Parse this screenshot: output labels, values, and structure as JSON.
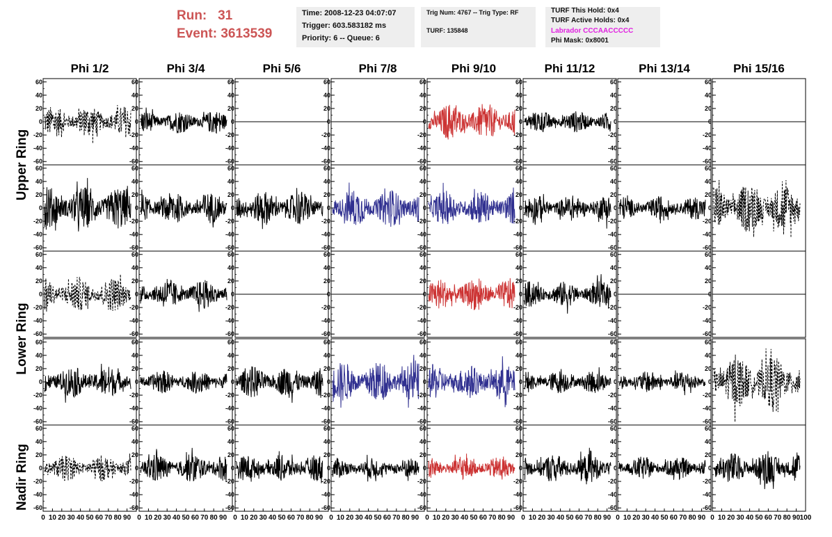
{
  "header": {
    "run_label": "Run:",
    "run_value": "31",
    "event_label": "Event:",
    "event_value": "3613539",
    "time": "Time: 2008-12-23 04:07:07",
    "trigger": "Trigger: 603.583182 ms",
    "priority": "Priority: 6 -- Queue: 6",
    "trig_num": "Trig Num: 4767 -- Trig Type: RF",
    "turf": "TURF: 135848",
    "turf_this_hold": "TURF This Hold: 0x4",
    "turf_active_holds": "TURF Active Holds: 0x4",
    "labrador": "Labrador CCCAACCCCC",
    "phi_mask": "Phi Mask: 0x8001",
    "run_color": "#cc5555",
    "labrador_color": "#e020e0"
  },
  "chart_data": {
    "type": "line",
    "columns": [
      "Phi 1/2",
      "Phi 3/4",
      "Phi 5/6",
      "Phi 7/8",
      "Phi 9/10",
      "Phi 11/12",
      "Phi 13/14",
      "Phi 15/16"
    ],
    "ring_labels": [
      "Upper Ring",
      "Lower Ring",
      "Nadir Ring"
    ],
    "ylim": [
      -65,
      65
    ],
    "xlim": [
      0,
      100
    ],
    "yticks": [
      -60,
      -40,
      -20,
      0,
      20,
      40,
      60
    ],
    "xticks": [
      0,
      10,
      20,
      30,
      40,
      50,
      60,
      70,
      80,
      90,
      100
    ],
    "style_colors": {
      "solid": "#000000",
      "dashed": "#000000",
      "red": "#cc3333",
      "blue": "#303090",
      "flat": "#000000"
    },
    "rows": [
      {
        "panels": [
          {
            "style": "dashed",
            "amplitude": 22
          },
          {
            "style": "solid",
            "amplitude": 16
          },
          {
            "style": "flat",
            "amplitude": 0
          },
          {
            "style": "flat",
            "amplitude": 0
          },
          {
            "style": "red",
            "amplitude": 26
          },
          {
            "style": "solid",
            "amplitude": 15
          },
          {
            "style": "flat",
            "amplitude": 0
          },
          {
            "style": "flat",
            "amplitude": 0
          }
        ]
      },
      {
        "panels": [
          {
            "style": "solid",
            "amplitude": 30
          },
          {
            "style": "solid",
            "amplitude": 22
          },
          {
            "style": "solid",
            "amplitude": 24
          },
          {
            "style": "blue",
            "amplitude": 26
          },
          {
            "style": "blue",
            "amplitude": 24
          },
          {
            "style": "solid",
            "amplitude": 18
          },
          {
            "style": "solid",
            "amplitude": 16
          },
          {
            "style": "dashed",
            "amplitude": 34
          }
        ]
      },
      {
        "panels": [
          {
            "style": "dashed",
            "amplitude": 24
          },
          {
            "style": "solid",
            "amplitude": 20
          },
          {
            "style": "flat",
            "amplitude": 0
          },
          {
            "style": "flat",
            "amplitude": 0
          },
          {
            "style": "red",
            "amplitude": 22
          },
          {
            "style": "solid",
            "amplitude": 18
          },
          {
            "style": "flat",
            "amplitude": 0
          },
          {
            "style": "flat",
            "amplitude": 0
          }
        ]
      },
      {
        "panels": [
          {
            "style": "solid",
            "amplitude": 22
          },
          {
            "style": "solid",
            "amplitude": 16
          },
          {
            "style": "solid",
            "amplitude": 22
          },
          {
            "style": "blue",
            "amplitude": 28
          },
          {
            "style": "blue",
            "amplitude": 24
          },
          {
            "style": "solid",
            "amplitude": 16
          },
          {
            "style": "solid",
            "amplitude": 15
          },
          {
            "style": "dashed",
            "amplitude": 36
          }
        ]
      },
      {
        "panels": [
          {
            "style": "dashed",
            "amplitude": 18
          },
          {
            "style": "solid",
            "amplitude": 20
          },
          {
            "style": "solid",
            "amplitude": 18
          },
          {
            "style": "solid",
            "amplitude": 14
          },
          {
            "style": "red",
            "amplitude": 16
          },
          {
            "style": "solid",
            "amplitude": 20
          },
          {
            "style": "solid",
            "amplitude": 16
          },
          {
            "style": "solid",
            "amplitude": 22
          }
        ]
      }
    ]
  }
}
